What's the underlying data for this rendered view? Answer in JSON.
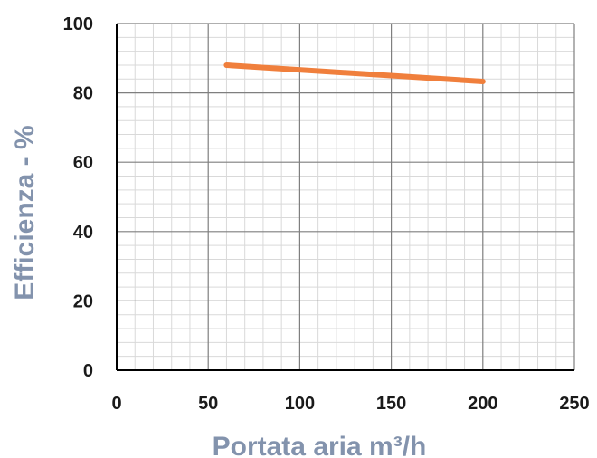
{
  "chart_data": {
    "type": "line",
    "title": "",
    "xlabel": "Portata aria m³/h",
    "ylabel": "Efficienza - %",
    "xlim": [
      0,
      250
    ],
    "ylim": [
      0,
      100
    ],
    "x_ticks": [
      "0",
      "50",
      "100",
      "150",
      "200",
      "250"
    ],
    "y_ticks": [
      "0",
      "20",
      "40",
      "60",
      "80",
      "100"
    ],
    "x_tick_values": [
      0,
      50,
      100,
      150,
      200,
      250
    ],
    "y_tick_values": [
      0,
      20,
      40,
      60,
      80,
      100
    ],
    "x_minor_step": 10,
    "y_minor_step": 4,
    "grid": true,
    "legend": "none",
    "series": [
      {
        "x": [
          60,
          200
        ],
        "y": [
          88,
          83.3
        ]
      }
    ],
    "colors": {
      "series": "#f07f3c",
      "axis_title": "#8393ad",
      "major_grid": "#7f7f7f",
      "minor_grid": "#d9d9d9",
      "axis": "#000000"
    }
  }
}
